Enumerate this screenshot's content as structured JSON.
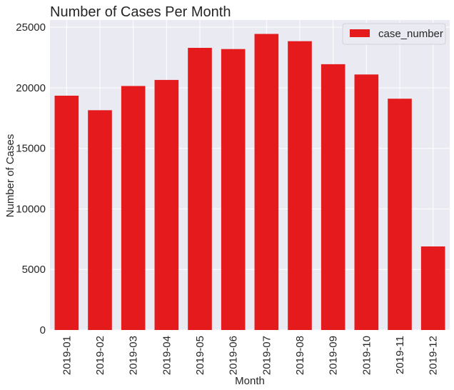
{
  "chart_data": {
    "type": "bar",
    "title": "Number of Cases Per Month",
    "xlabel": "Month",
    "ylabel": "Number of Cases",
    "categories": [
      "2019-01",
      "2019-02",
      "2019-03",
      "2019-04",
      "2019-05",
      "2019-06",
      "2019-07",
      "2019-08",
      "2019-09",
      "2019-10",
      "2019-11",
      "2019-12"
    ],
    "series": [
      {
        "name": "case_number",
        "values": [
          19350,
          18150,
          20150,
          20650,
          23300,
          23200,
          24450,
          23850,
          21950,
          21100,
          19100,
          6900
        ],
        "color": "#e41a1c"
      }
    ],
    "yticks": [
      0,
      5000,
      10000,
      15000,
      20000,
      25000
    ],
    "ytick_labels": [
      "0",
      "5000",
      "10000",
      "15000",
      "20000",
      "25000"
    ],
    "ylim": [
      0,
      25600
    ],
    "grid": true,
    "legend_position": "top-right",
    "background_color": "#eaeaf2",
    "grid_color": "#ffffff"
  }
}
